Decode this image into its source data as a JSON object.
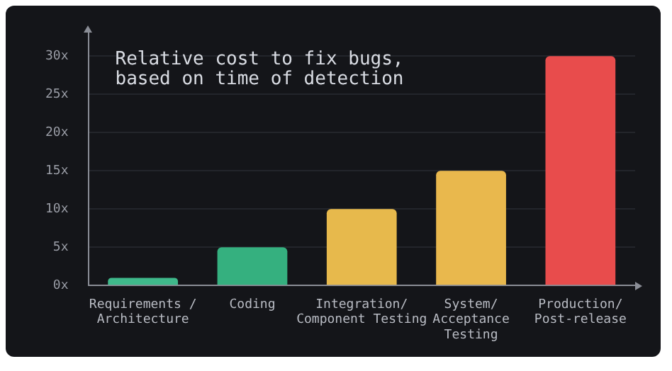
{
  "chart_data": {
    "type": "bar",
    "title": "Relative cost to fix bugs,\nbased on time of detection",
    "categories": [
      "Requirements /\nArchitecture",
      "Coding",
      "Integration/\nComponent Testing",
      "System/\nAcceptance\nTesting",
      "Production/\nPost-release"
    ],
    "values": [
      1,
      5,
      10,
      15,
      30
    ],
    "colors": [
      "#3fb98b",
      "#35b07f",
      "#e7b94c",
      "#e9b84d",
      "#e84c4c"
    ],
    "ylim": [
      0,
      33
    ],
    "yticks": [
      {
        "value": 0,
        "label": "0x"
      },
      {
        "value": 5,
        "label": "5x"
      },
      {
        "value": 10,
        "label": "10x"
      },
      {
        "value": 15,
        "label": "15x"
      },
      {
        "value": 20,
        "label": "20x"
      },
      {
        "value": 25,
        "label": "25x"
      },
      {
        "value": 30,
        "label": "30x"
      }
    ],
    "grid": "y",
    "legend": false
  }
}
